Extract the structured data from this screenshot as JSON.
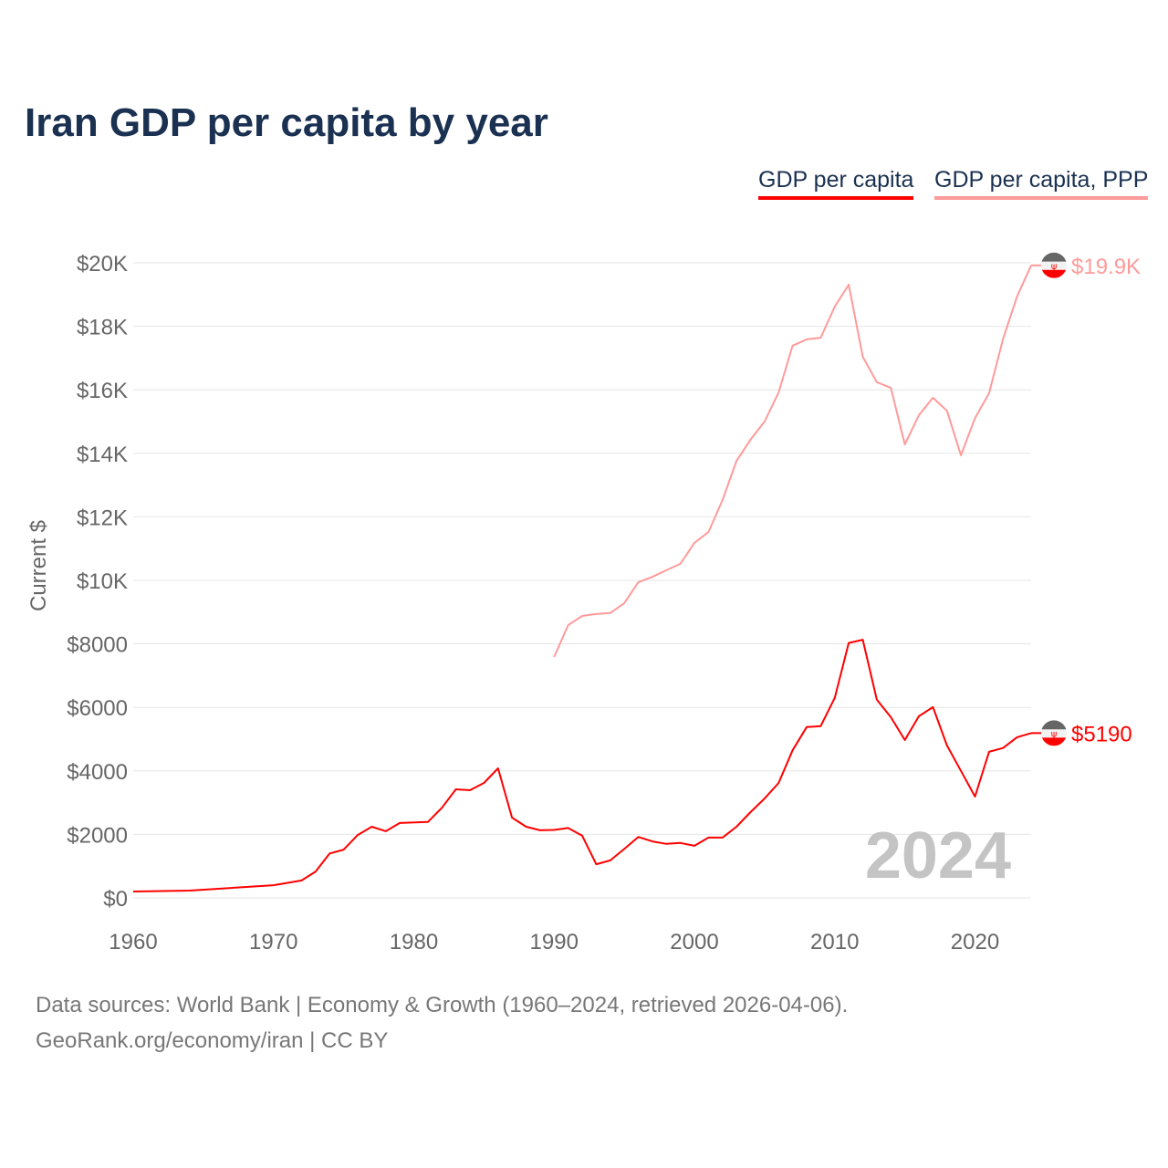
{
  "title": "Iran GDP per capita by year",
  "legend": [
    "GDP per capita",
    "GDP per capita, PPP"
  ],
  "footer": {
    "line1": "Data sources: World Bank | Economy & Growth (1960–2024, retrieved 2026-04-06).",
    "line2": "GeoRank.org/economy/iran | CC BY"
  },
  "chart_data": {
    "type": "line",
    "title": "Iran GDP per capita by year",
    "ylabel": "Current $",
    "xlabel": "",
    "xlim": [
      1960,
      2024
    ],
    "ylim": [
      0,
      20000
    ],
    "x_ticks": [
      1960,
      1970,
      1980,
      1990,
      2000,
      2010,
      2020
    ],
    "x_tick_labels": [
      "1960",
      "1970",
      "1980",
      "1990",
      "2000",
      "2010",
      "2020"
    ],
    "y_ticks": [
      0,
      2000,
      4000,
      6000,
      8000,
      10000,
      12000,
      14000,
      16000,
      18000,
      20000
    ],
    "y_tick_labels": [
      "$0",
      "$2000",
      "$4000",
      "$6000",
      "$8000",
      "$10K",
      "$12K",
      "$14K",
      "$16K",
      "$18K",
      "$20K"
    ],
    "grid": true,
    "year_label": "2024",
    "legend_position": "top-right",
    "series": [
      {
        "name": "GDP per capita",
        "color": "#ff0000",
        "end_label": "$5190",
        "x": [
          1960,
          1964,
          1970,
          1972,
          1973,
          1974,
          1975,
          1976,
          1977,
          1978,
          1979,
          1981,
          1982,
          1983,
          1984,
          1985,
          1986,
          1987,
          1988,
          1989,
          1990,
          1991,
          1992,
          1993,
          1994,
          1995,
          1996,
          1997,
          1998,
          1999,
          2000,
          2001,
          2002,
          2003,
          2004,
          2005,
          2006,
          2007,
          2008,
          2009,
          2010,
          2011,
          2012,
          2013,
          2014,
          2015,
          2016,
          2017,
          2018,
          2019,
          2020,
          2021,
          2022,
          2023,
          2024
        ],
        "values": [
          200,
          230,
          400,
          550,
          830,
          1400,
          1520,
          1980,
          2240,
          2100,
          2360,
          2390,
          2840,
          3420,
          3390,
          3620,
          4080,
          2530,
          2240,
          2130,
          2140,
          2200,
          1960,
          1060,
          1180,
          1540,
          1920,
          1780,
          1700,
          1730,
          1640,
          1900,
          1900,
          2240,
          2700,
          3130,
          3620,
          4650,
          5380,
          5410,
          6300,
          8030,
          8130,
          6240,
          5690,
          4970,
          5720,
          6010,
          4800,
          4000,
          3190,
          4600,
          4720,
          5060,
          5190
        ]
      },
      {
        "name": "GDP per capita, PPP",
        "color": "#ff9a9a",
        "end_label": "$19.9K",
        "x": [
          1990,
          1991,
          1992,
          1993,
          1994,
          1995,
          1996,
          1997,
          1998,
          1999,
          2000,
          2001,
          2002,
          2003,
          2004,
          2005,
          2006,
          2007,
          2008,
          2009,
          2010,
          2011,
          2012,
          2013,
          2014,
          2015,
          2016,
          2017,
          2018,
          2019,
          2020,
          2021,
          2022,
          2023,
          2024
        ],
        "values": [
          7590,
          8590,
          8880,
          8940,
          8970,
          9280,
          9940,
          10110,
          10320,
          10520,
          11180,
          11520,
          12530,
          13760,
          14430,
          15000,
          15920,
          17390,
          17590,
          17640,
          18620,
          19310,
          17040,
          16240,
          16060,
          14280,
          15200,
          15750,
          15340,
          13940,
          15110,
          15890,
          17610,
          18940,
          19920
        ]
      }
    ]
  }
}
